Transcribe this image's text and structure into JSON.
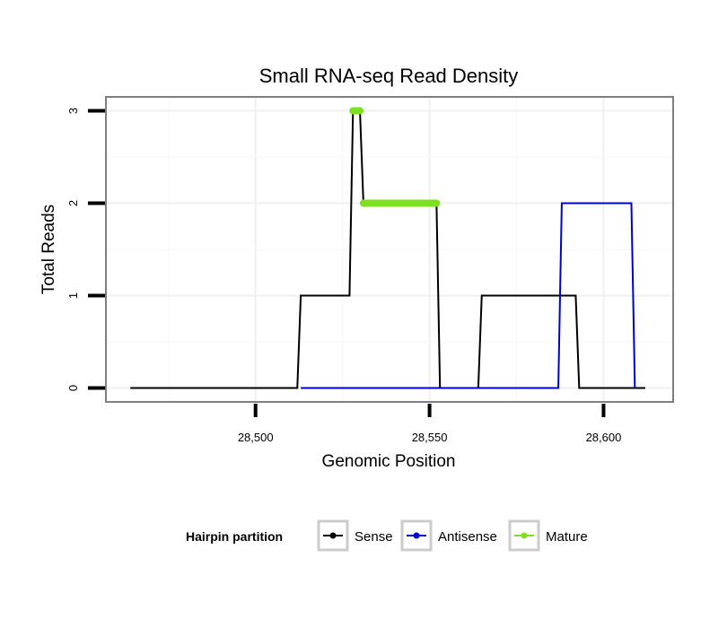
{
  "chart_data": {
    "type": "line",
    "title": "Small RNA-seq Read Density",
    "xlabel": "Genomic Position",
    "ylabel": "Total Reads",
    "xlim": [
      28457,
      28620
    ],
    "ylim": [
      -0.15,
      3.15
    ],
    "x_ticks": [
      28500,
      28550,
      28600
    ],
    "x_tick_labels": [
      "28,500",
      "28,550",
      "28,600"
    ],
    "y_ticks": [
      0,
      1,
      2,
      3
    ],
    "y_tick_labels": [
      "0",
      "1",
      "2",
      "3"
    ],
    "grid": true,
    "legend": {
      "title": "Hairpin partition",
      "position": "bottom"
    },
    "series": [
      {
        "name": "Sense",
        "color": "#000000",
        "x": [
          28464,
          28512,
          28513,
          28527,
          28528,
          28530,
          28531,
          28552,
          28553,
          28564,
          28565,
          28592,
          28593,
          28612
        ],
        "y": [
          0,
          0,
          1,
          1,
          3,
          3,
          2,
          2,
          0,
          0,
          1,
          1,
          0,
          0
        ]
      },
      {
        "name": "Antisense",
        "color": "#0000cc",
        "x": [
          28513,
          28587,
          28588,
          28608,
          28609
        ],
        "y": [
          0,
          0,
          2,
          2,
          0
        ]
      },
      {
        "name": "Mature",
        "color": "#7fe020",
        "segments": [
          {
            "x": [
              28528,
              28530
            ],
            "y": [
              3,
              3
            ]
          },
          {
            "x": [
              28531,
              28552
            ],
            "y": [
              2,
              2
            ]
          }
        ]
      }
    ]
  }
}
